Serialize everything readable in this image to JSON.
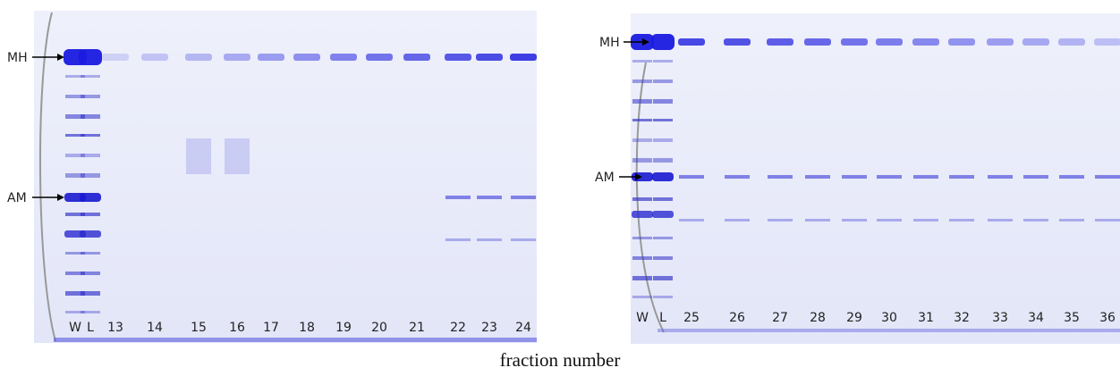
{
  "gels": [
    {
      "markers": [
        "MH",
        "AM"
      ],
      "lanes": [
        "W",
        "L",
        "13",
        "14",
        "15",
        "16",
        "17",
        "18",
        "19",
        "20",
        "21",
        "22",
        "23",
        "24"
      ]
    },
    {
      "markers": [
        "MH",
        "AM"
      ],
      "lanes": [
        "W",
        "L",
        "25",
        "26",
        "27",
        "28",
        "29",
        "30",
        "31",
        "32",
        "33",
        "34",
        "35",
        "36"
      ]
    }
  ],
  "caption": "fraction number"
}
